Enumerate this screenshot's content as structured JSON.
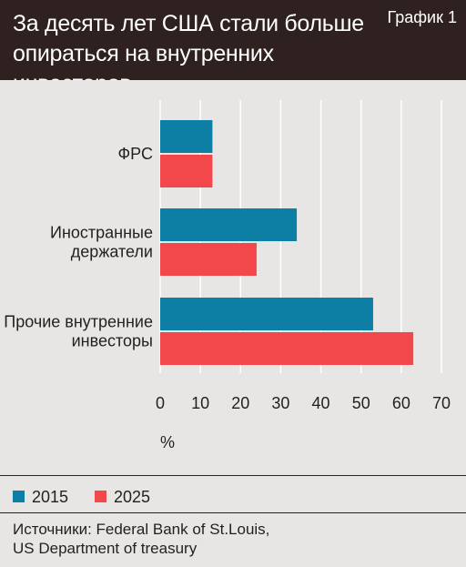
{
  "header": {
    "title_line1": "За десять лет США стали больше",
    "title_line2": "опираться на внутренних инвесторов",
    "badge": "График 1"
  },
  "chart_data": {
    "type": "bar",
    "orientation": "horizontal",
    "categories": [
      [
        "ФРС"
      ],
      [
        "Иностранные",
        "держатели"
      ],
      [
        "Прочие внутренние",
        "инвесторы"
      ]
    ],
    "series": [
      {
        "name": "2015",
        "color": "#0d7fa5",
        "values": [
          13,
          34,
          53
        ]
      },
      {
        "name": "2025",
        "color": "#f2484b",
        "values": [
          13,
          24,
          63
        ]
      }
    ],
    "xlim": [
      0,
      70
    ],
    "xticks": [
      0,
      10,
      20,
      30,
      40,
      50,
      60,
      70
    ],
    "xlabel": "%",
    "grid": true
  },
  "legend": [
    {
      "label": "2015",
      "color": "#0d7fa5"
    },
    {
      "label": "2025",
      "color": "#f2484b"
    }
  ],
  "source": {
    "line1": "Источники: Federal Bank of St.Louis,",
    "line2": "US Department of treasury"
  }
}
